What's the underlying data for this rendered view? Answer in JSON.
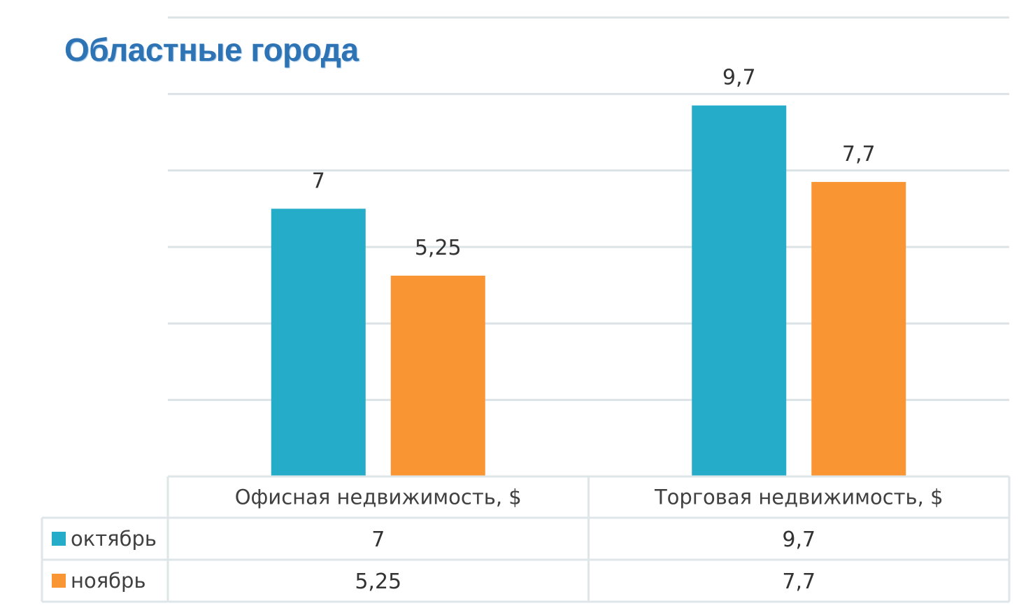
{
  "chart_data": {
    "type": "bar",
    "title": "Областные города",
    "categories": [
      "Офисная недвижимость, $",
      "Торговая недвижимость, $"
    ],
    "series": [
      {
        "name": "октябрь",
        "values": [
          7,
          9.7
        ],
        "labels": [
          "7",
          "9,7"
        ],
        "color": "#25acc9"
      },
      {
        "name": "ноябрь",
        "values": [
          5.25,
          7.7
        ],
        "labels": [
          "5,25",
          "7,7"
        ],
        "color": "#f99532"
      }
    ],
    "ylim": [
      0,
      12
    ],
    "ytick_step": 2,
    "grid": true,
    "data_table": true,
    "legend_placement": "data-table"
  },
  "colors": {
    "title": "#2e74b5",
    "gridline": "#dce3e6",
    "table_border": "#dfe6e8"
  }
}
